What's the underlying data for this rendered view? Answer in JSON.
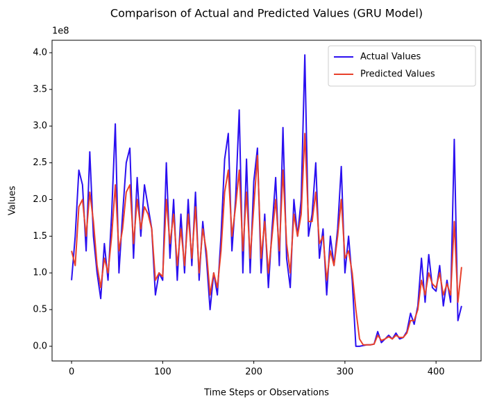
{
  "chart_data": {
    "type": "line",
    "title": "Comparison of Actual and Predicted Values (GRU Model)",
    "x_label": "Time Steps or Observations",
    "y_label": "Values",
    "y_offset_label": "1e8",
    "legend": "upper right",
    "xlim": [
      -21.4,
      449.4
    ],
    "ylim": [
      -0.2,
      4.17
    ],
    "xticks": [
      0,
      100,
      200,
      300,
      400
    ],
    "yticks": [
      {
        "value": 0,
        "label": "0.0"
      },
      0.5,
      {
        "value": 1,
        "label": "1.0"
      },
      1.5,
      {
        "value": 2,
        "label": "2.0"
      },
      2.5,
      {
        "value": 3,
        "label": "3.0"
      },
      3.5,
      {
        "value": 4,
        "label": "4.0"
      }
    ],
    "x": [
      0,
      4,
      8,
      12,
      16,
      20,
      24,
      28,
      32,
      36,
      40,
      44,
      48,
      52,
      56,
      60,
      64,
      68,
      72,
      76,
      80,
      84,
      88,
      92,
      96,
      100,
      104,
      108,
      112,
      116,
      120,
      124,
      128,
      132,
      136,
      140,
      144,
      148,
      152,
      156,
      160,
      164,
      168,
      172,
      176,
      180,
      184,
      188,
      192,
      196,
      200,
      204,
      208,
      212,
      216,
      220,
      224,
      228,
      232,
      236,
      240,
      244,
      248,
      252,
      256,
      260,
      264,
      268,
      272,
      276,
      280,
      284,
      288,
      292,
      296,
      300,
      304,
      308,
      312,
      316,
      320,
      324,
      328,
      332,
      336,
      340,
      344,
      348,
      352,
      356,
      360,
      364,
      368,
      372,
      376,
      380,
      384,
      388,
      392,
      396,
      400,
      404,
      408,
      412,
      416,
      420,
      424,
      428
    ],
    "series": [
      {
        "name": "Actual Values",
        "color": "#2a0ff0",
        "values": [
          0.9,
          1.5,
          2.4,
          2.2,
          1.3,
          2.65,
          1.5,
          1.0,
          0.65,
          1.4,
          0.9,
          1.8,
          3.03,
          1.0,
          1.8,
          2.5,
          2.7,
          1.2,
          2.3,
          1.5,
          2.2,
          1.9,
          1.6,
          0.7,
          1.0,
          0.9,
          2.5,
          1.2,
          2.0,
          0.9,
          1.8,
          1.0,
          2.0,
          1.1,
          2.1,
          0.9,
          1.7,
          1.2,
          0.5,
          1.0,
          0.7,
          1.5,
          2.55,
          2.9,
          1.3,
          2.0,
          3.22,
          1.0,
          2.55,
          1.0,
          2.25,
          2.7,
          1.0,
          1.8,
          0.8,
          1.6,
          2.3,
          1.1,
          2.98,
          1.2,
          0.8,
          2.0,
          1.5,
          2.0,
          3.97,
          1.5,
          1.8,
          2.5,
          1.2,
          1.6,
          0.7,
          1.5,
          1.1,
          1.6,
          2.45,
          1.0,
          1.5,
          0.9,
          0.0,
          0.0,
          0.01,
          0.02,
          0.02,
          0.03,
          0.2,
          0.05,
          0.1,
          0.15,
          0.1,
          0.18,
          0.1,
          0.12,
          0.2,
          0.45,
          0.3,
          0.55,
          1.2,
          0.6,
          1.25,
          0.8,
          0.75,
          1.1,
          0.55,
          0.9,
          0.6,
          2.82,
          0.35,
          0.55
        ]
      },
      {
        "name": "Predicted Values",
        "color": "#e8402a",
        "values": [
          1.3,
          1.1,
          1.9,
          2.0,
          1.5,
          2.1,
          1.7,
          1.1,
          0.8,
          1.2,
          1.0,
          1.5,
          2.2,
          1.3,
          1.6,
          2.1,
          2.2,
          1.4,
          2.0,
          1.6,
          1.9,
          1.8,
          1.6,
          0.9,
          1.0,
          0.95,
          2.0,
          1.4,
          1.8,
          1.1,
          1.6,
          1.1,
          1.8,
          1.2,
          1.9,
          1.0,
          1.6,
          1.3,
          0.7,
          1.0,
          0.8,
          1.3,
          2.1,
          2.4,
          1.5,
          1.9,
          2.4,
          1.3,
          2.1,
          1.2,
          1.9,
          2.6,
          1.2,
          1.7,
          1.0,
          1.5,
          2.0,
          1.3,
          2.4,
          1.4,
          1.0,
          1.8,
          1.5,
          1.8,
          2.9,
          1.7,
          1.7,
          2.1,
          1.4,
          1.5,
          0.9,
          1.3,
          1.1,
          1.5,
          2.0,
          1.2,
          1.3,
          1.0,
          0.5,
          0.1,
          0.02,
          0.02,
          0.02,
          0.03,
          0.15,
          0.08,
          0.1,
          0.13,
          0.1,
          0.15,
          0.12,
          0.12,
          0.18,
          0.35,
          0.35,
          0.5,
          0.9,
          0.7,
          1.0,
          0.85,
          0.8,
          1.0,
          0.7,
          0.85,
          0.7,
          1.7,
          0.6,
          1.08
        ]
      }
    ]
  }
}
